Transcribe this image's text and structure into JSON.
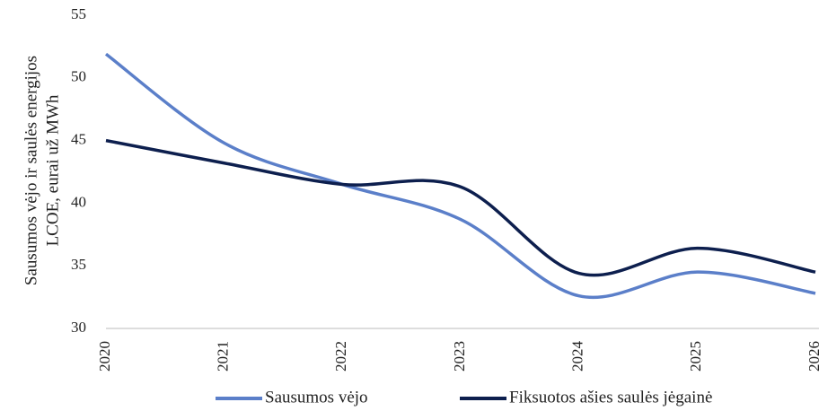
{
  "chart_data": {
    "type": "line",
    "y_label": [
      "Sausumos vėjo ir saulės energijos",
      "LCOE, eurai už MWh"
    ],
    "categories": [
      "2020",
      "2021",
      "2022",
      "2023",
      "2024",
      "2025",
      "2026"
    ],
    "series": [
      {
        "name": "Sausumos vėjo",
        "color": "#5b7fc9",
        "values": [
          51.9,
          44.8,
          41.5,
          38.7,
          32.6,
          34.5,
          32.8
        ]
      },
      {
        "name": "Fiksuotos ašies saulės jėgainė",
        "color": "#0d1f4e",
        "values": [
          45.0,
          43.2,
          41.5,
          41.3,
          34.4,
          36.4,
          34.5
        ]
      }
    ],
    "ylim": [
      30,
      55
    ],
    "yticks": [
      30,
      35,
      40,
      45,
      50,
      55
    ],
    "smooth": true
  }
}
